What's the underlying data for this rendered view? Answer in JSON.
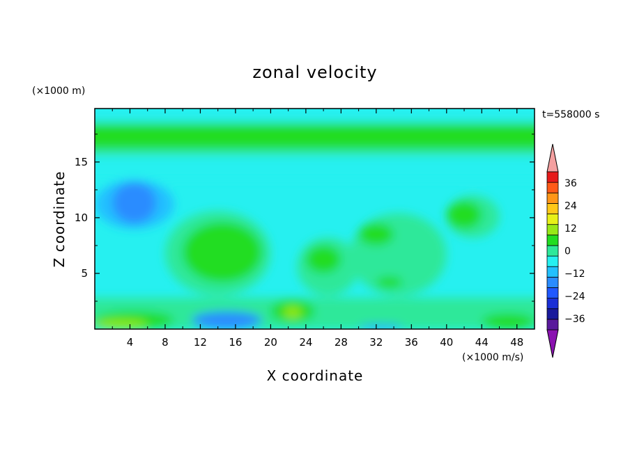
{
  "chart_data": {
    "type": "heatmap",
    "title": "zonal velocity",
    "xlabel": "X coordinate",
    "ylabel": "Z coordinate",
    "y_unit_label": "(×1000 m)",
    "colorbar_unit_label": "(×1000 m/s)",
    "time_label": "t=558000 s",
    "xlim": [
      0,
      50
    ],
    "ylim": [
      0,
      19.8
    ],
    "x_ticks": [
      4,
      8,
      12,
      16,
      20,
      24,
      28,
      32,
      36,
      40,
      44,
      48
    ],
    "y_ticks": [
      5,
      10,
      15
    ],
    "grid": false,
    "colorbar": {
      "placement": "right",
      "levels": [
        -42,
        -36,
        -30,
        -24,
        -18,
        -12,
        -6,
        0,
        6,
        12,
        18,
        24,
        30,
        36,
        42
      ],
      "colors": [
        "#5a1a9c",
        "#1a1a9c",
        "#1a2fd6",
        "#2058ff",
        "#2a8cff",
        "#22c0ff",
        "#26f0f0",
        "#2ee89a",
        "#22dd22",
        "#98e818",
        "#e8f018",
        "#ffc818",
        "#ff9618",
        "#ff5a18",
        "#e61a1a"
      ],
      "under_color": "#8a12b0",
      "over_color": "#f4a0a0",
      "tick_labels": [
        "36",
        "24",
        "12",
        "0",
        "−12",
        "−24",
        "−36"
      ],
      "tick_values": [
        36,
        24,
        12,
        0,
        -12,
        -24,
        -36
      ]
    },
    "regions": [
      {
        "x": [
          0,
          50
        ],
        "y": [
          0,
          19.8
        ],
        "value": -4
      },
      {
        "x": [
          0,
          50
        ],
        "y": [
          15.6,
          19.4
        ],
        "value": 3
      },
      {
        "x": [
          0,
          50
        ],
        "y": [
          16.2,
          18.4
        ],
        "value": 7
      },
      {
        "x": [
          0,
          50
        ],
        "y": [
          18.6,
          19.8
        ],
        "value": -3
      },
      {
        "x": [
          0,
          50
        ],
        "y": [
          13.4,
          15.6
        ],
        "value": -2
      },
      {
        "x": [
          0,
          50
        ],
        "y": [
          0,
          2.8
        ],
        "value": 2
      },
      {
        "x": [
          0,
          9
        ],
        "y": [
          0,
          1.6
        ],
        "value": 8
      },
      {
        "x": [
          0,
          6
        ],
        "y": [
          0,
          0.8
        ],
        "value": 13
      },
      {
        "x": [
          11,
          19
        ],
        "y": [
          0,
          1.6
        ],
        "value": -18
      },
      {
        "x": [
          20,
          25
        ],
        "y": [
          0.6,
          2.6
        ],
        "value": 8
      },
      {
        "x": [
          21.5,
          23.5
        ],
        "y": [
          1.0,
          2.0
        ],
        "value": 14
      },
      {
        "x": [
          8,
          20
        ],
        "y": [
          3,
          10.6
        ],
        "value": 3
      },
      {
        "x": [
          10,
          19
        ],
        "y": [
          4.2,
          9.6
        ],
        "value": 8
      },
      {
        "x": [
          0,
          9
        ],
        "y": [
          9,
          13.4
        ],
        "value": -9
      },
      {
        "x": [
          2,
          7
        ],
        "y": [
          9.5,
          13.2
        ],
        "value": -15
      },
      {
        "x": [
          23,
          30
        ],
        "y": [
          3,
          8.2
        ],
        "value": 3
      },
      {
        "x": [
          24,
          28
        ],
        "y": [
          5,
          7.5
        ],
        "value": 8
      },
      {
        "x": [
          29,
          40
        ],
        "y": [
          3,
          10.4
        ],
        "value": 3
      },
      {
        "x": [
          30,
          34
        ],
        "y": [
          7.5,
          9.5
        ],
        "value": 8
      },
      {
        "x": [
          32,
          35
        ],
        "y": [
          3.7,
          4.7
        ],
        "value": 8
      },
      {
        "x": [
          40,
          46
        ],
        "y": [
          8.2,
          12.0
        ],
        "value": 3
      },
      {
        "x": [
          40,
          44
        ],
        "y": [
          9,
          11.5
        ],
        "value": 8
      },
      {
        "x": [
          40,
          50
        ],
        "y": [
          0,
          2.2
        ],
        "value": 3
      },
      {
        "x": [
          44,
          50
        ],
        "y": [
          0,
          1.4
        ],
        "value": 8
      },
      {
        "x": [
          30,
          35
        ],
        "y": [
          0,
          0.4
        ],
        "value": -15
      }
    ]
  }
}
